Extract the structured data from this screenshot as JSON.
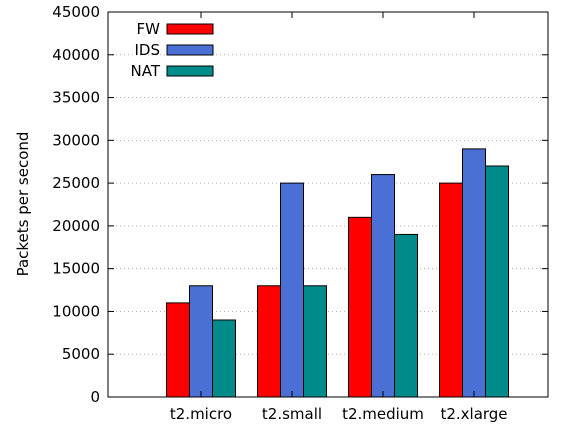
{
  "chart_data": {
    "type": "bar",
    "title": "",
    "xlabel": "",
    "ylabel": "Packets per second",
    "categories": [
      "t2.micro",
      "t2.small",
      "t2.medium",
      "t2.xlarge"
    ],
    "series": [
      {
        "name": "FW",
        "values": [
          11000,
          13000,
          21000,
          25000
        ],
        "color": "#ff0000"
      },
      {
        "name": "IDS",
        "values": [
          13000,
          25000,
          26000,
          29000
        ],
        "color": "#4a70d6"
      },
      {
        "name": "NAT",
        "values": [
          9000,
          13000,
          19000,
          27000
        ],
        "color": "#008b8b"
      }
    ],
    "ylim": [
      0,
      45000
    ],
    "yticks": [
      0,
      5000,
      10000,
      15000,
      20000,
      25000,
      30000,
      35000,
      40000,
      45000
    ],
    "grid": true,
    "legend_position": "top-left"
  }
}
